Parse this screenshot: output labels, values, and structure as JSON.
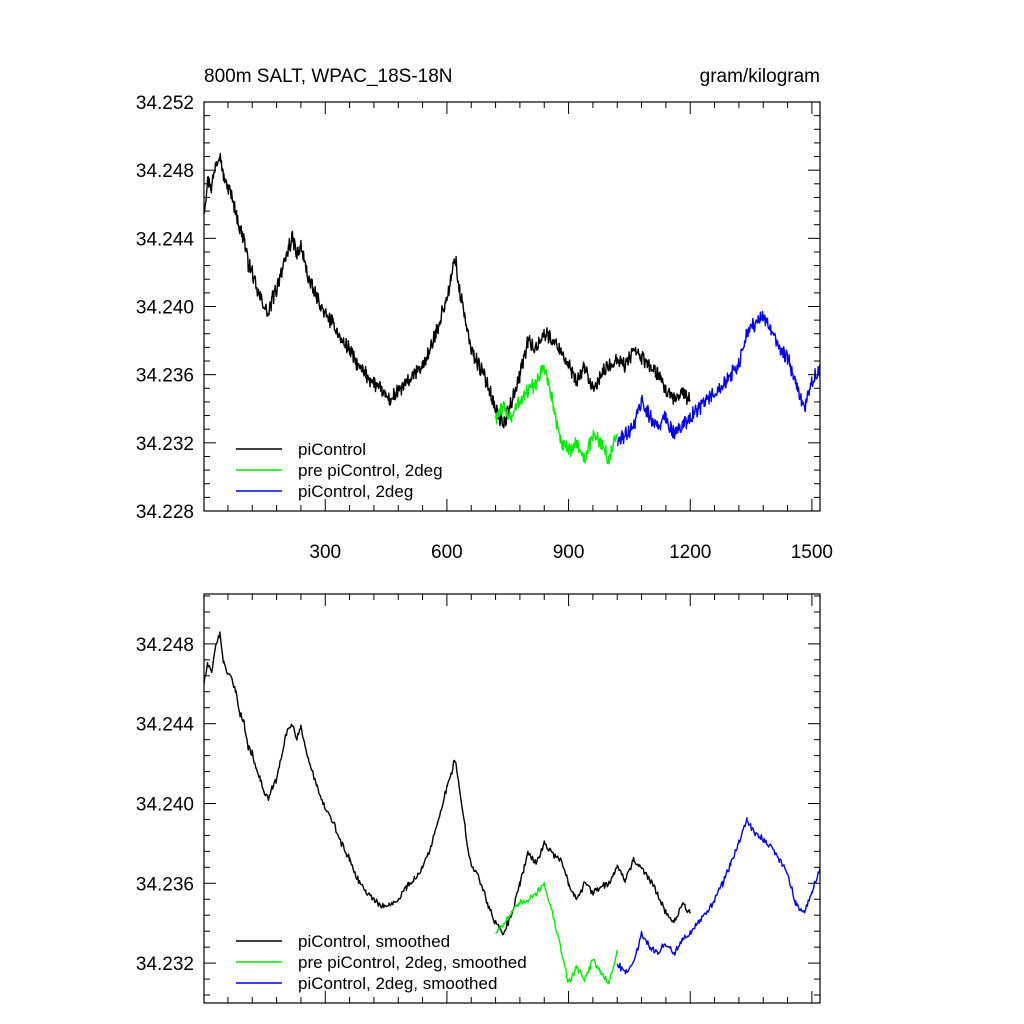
{
  "chart_data": [
    {
      "type": "line",
      "title": "800m SALT, WPAC_18S-18N",
      "units": "gram/kilogram",
      "xlim": [
        1,
        1520
      ],
      "ylim": [
        34.228,
        34.252
      ],
      "xticks": [
        300,
        600,
        900,
        1200,
        1500
      ],
      "xtick_labels": [
        "300",
        "600",
        "900",
        "1200",
        "1500"
      ],
      "yticks": [
        34.228,
        34.232,
        34.236,
        34.24,
        34.244,
        34.248,
        34.252
      ],
      "ytick_labels": [
        "34.228",
        "34.232",
        "34.236",
        "34.240",
        "34.244",
        "34.248",
        "34.252"
      ],
      "legend_position": "bottom-left",
      "grid": false,
      "series": [
        {
          "name": "piControl",
          "color": "#000000",
          "x": [
            1,
            10,
            20,
            30,
            40,
            50,
            60,
            70,
            80,
            90,
            100,
            110,
            120,
            130,
            140,
            150,
            160,
            170,
            180,
            190,
            200,
            210,
            220,
            230,
            240,
            250,
            260,
            270,
            280,
            290,
            300,
            320,
            340,
            360,
            380,
            400,
            420,
            440,
            460,
            480,
            500,
            520,
            540,
            560,
            580,
            600,
            610,
            620,
            630,
            640,
            650,
            660,
            680,
            700,
            720,
            740,
            760,
            780,
            800,
            820,
            840,
            860,
            880,
            900,
            920,
            940,
            960,
            980,
            1000,
            1020,
            1040,
            1060,
            1080,
            1100,
            1120,
            1140,
            1160,
            1180,
            1200
          ],
          "y": [
            34.2455,
            34.2475,
            34.247,
            34.2485,
            34.249,
            34.2475,
            34.247,
            34.2465,
            34.2455,
            34.2445,
            34.244,
            34.2425,
            34.242,
            34.241,
            34.2405,
            34.24,
            34.2395,
            34.2405,
            34.241,
            34.242,
            34.2425,
            34.2435,
            34.244,
            34.243,
            34.2435,
            34.2425,
            34.2415,
            34.241,
            34.2405,
            34.24,
            34.2395,
            34.239,
            34.238,
            34.2375,
            34.2365,
            34.236,
            34.2355,
            34.235,
            34.2345,
            34.235,
            34.2355,
            34.236,
            34.2365,
            34.2375,
            34.239,
            34.2405,
            34.2415,
            34.243,
            34.241,
            34.24,
            34.2385,
            34.2375,
            34.2365,
            34.2355,
            34.234,
            34.233,
            34.2345,
            34.236,
            34.238,
            34.2375,
            34.2385,
            34.238,
            34.2375,
            34.2365,
            34.2355,
            34.2365,
            34.235,
            34.236,
            34.2365,
            34.237,
            34.2365,
            34.2375,
            34.237,
            34.2365,
            34.236,
            34.235,
            34.2345,
            34.235,
            34.2345
          ]
        },
        {
          "name": "pre piControl, 2deg",
          "color": "#00ee00",
          "x": [
            720,
            740,
            760,
            780,
            800,
            820,
            840,
            860,
            880,
            900,
            920,
            940,
            960,
            980,
            1000,
            1020
          ],
          "y": [
            34.2335,
            34.234,
            34.2335,
            34.2345,
            34.235,
            34.2355,
            34.2365,
            34.2345,
            34.232,
            34.2315,
            34.232,
            34.231,
            34.2325,
            34.232,
            34.231,
            34.2325
          ]
        },
        {
          "name": "piControl, 2deg",
          "color": "#0000ee",
          "x": [
            1020,
            1040,
            1060,
            1080,
            1100,
            1120,
            1140,
            1160,
            1180,
            1200,
            1220,
            1240,
            1260,
            1280,
            1300,
            1320,
            1340,
            1360,
            1380,
            1400,
            1420,
            1440,
            1460,
            1480,
            1500,
            1520
          ],
          "y": [
            34.232,
            34.2325,
            34.233,
            34.2345,
            34.2335,
            34.233,
            34.2335,
            34.2325,
            34.233,
            34.2335,
            34.234,
            34.2345,
            34.235,
            34.2355,
            34.236,
            34.2365,
            34.2385,
            34.239,
            34.2395,
            34.2385,
            34.2375,
            34.237,
            34.2355,
            34.234,
            34.2355,
            34.2365
          ]
        }
      ]
    },
    {
      "type": "line",
      "title": "",
      "xlim": [
        1,
        1520
      ],
      "ylim": [
        34.23,
        34.2505
      ],
      "xticks": [
        300,
        600,
        900,
        1200,
        1500
      ],
      "yticks": [
        34.232,
        34.236,
        34.24,
        34.244,
        34.248
      ],
      "ytick_labels": [
        "34.232",
        "34.236",
        "34.240",
        "34.244",
        "34.248"
      ],
      "legend_position": "bottom-left",
      "grid": false,
      "series": [
        {
          "name": "piControl, smoothed",
          "color": "#000000",
          "x": [
            1,
            10,
            20,
            30,
            40,
            50,
            60,
            70,
            80,
            90,
            100,
            110,
            120,
            130,
            140,
            150,
            160,
            170,
            180,
            190,
            200,
            210,
            220,
            230,
            240,
            250,
            260,
            270,
            280,
            290,
            300,
            320,
            340,
            360,
            380,
            400,
            420,
            440,
            460,
            480,
            500,
            520,
            540,
            560,
            580,
            600,
            610,
            620,
            630,
            640,
            650,
            660,
            680,
            700,
            720,
            740,
            760,
            780,
            800,
            820,
            840,
            860,
            880,
            900,
            920,
            940,
            960,
            980,
            1000,
            1020,
            1040,
            1060,
            1080,
            1100,
            1120,
            1140,
            1160,
            1180,
            1200
          ],
          "y": [
            34.246,
            34.247,
            34.2465,
            34.248,
            34.2485,
            34.247,
            34.2465,
            34.2462,
            34.2455,
            34.2445,
            34.244,
            34.2428,
            34.2425,
            34.2418,
            34.2412,
            34.2405,
            34.2402,
            34.2408,
            34.2412,
            34.2422,
            34.2432,
            34.2438,
            34.244,
            34.2432,
            34.2438,
            34.243,
            34.242,
            34.2415,
            34.2408,
            34.2402,
            34.2398,
            34.239,
            34.238,
            34.2372,
            34.2362,
            34.2356,
            34.2352,
            34.2348,
            34.235,
            34.2352,
            34.2358,
            34.2362,
            34.2368,
            34.2378,
            34.2392,
            34.2408,
            34.2415,
            34.2422,
            34.2408,
            34.2395,
            34.238,
            34.237,
            34.2362,
            34.235,
            34.234,
            34.2335,
            34.2345,
            34.236,
            34.2375,
            34.237,
            34.238,
            34.2375,
            34.2372,
            34.236,
            34.2352,
            34.236,
            34.2355,
            34.2358,
            34.236,
            34.2368,
            34.2362,
            34.2372,
            34.2368,
            34.2362,
            34.2355,
            34.2345,
            34.234,
            34.235,
            34.2345
          ]
        },
        {
          "name": "pre piControl, 2deg, smoothed",
          "color": "#00ee00",
          "x": [
            720,
            740,
            760,
            780,
            800,
            820,
            840,
            860,
            880,
            900,
            920,
            940,
            960,
            980,
            1000,
            1020
          ],
          "y": [
            34.2335,
            34.234,
            34.2345,
            34.235,
            34.2352,
            34.2355,
            34.236,
            34.2345,
            34.2328,
            34.231,
            34.2318,
            34.2312,
            34.2322,
            34.2315,
            34.231,
            34.2325
          ]
        },
        {
          "name": "piControl, 2deg, smoothed",
          "color": "#0000ee",
          "x": [
            1020,
            1040,
            1060,
            1080,
            1100,
            1120,
            1140,
            1160,
            1180,
            1200,
            1220,
            1240,
            1260,
            1280,
            1300,
            1320,
            1340,
            1360,
            1380,
            1400,
            1420,
            1440,
            1460,
            1480,
            1500,
            1520
          ],
          "y": [
            34.232,
            34.2315,
            34.232,
            34.2335,
            34.2328,
            34.2325,
            34.233,
            34.2325,
            34.2332,
            34.2335,
            34.234,
            34.2345,
            34.2352,
            34.236,
            34.237,
            34.238,
            34.2392,
            34.2385,
            34.2382,
            34.2378,
            34.2372,
            34.2365,
            34.235,
            34.2345,
            34.2355,
            34.2368
          ]
        }
      ]
    }
  ]
}
